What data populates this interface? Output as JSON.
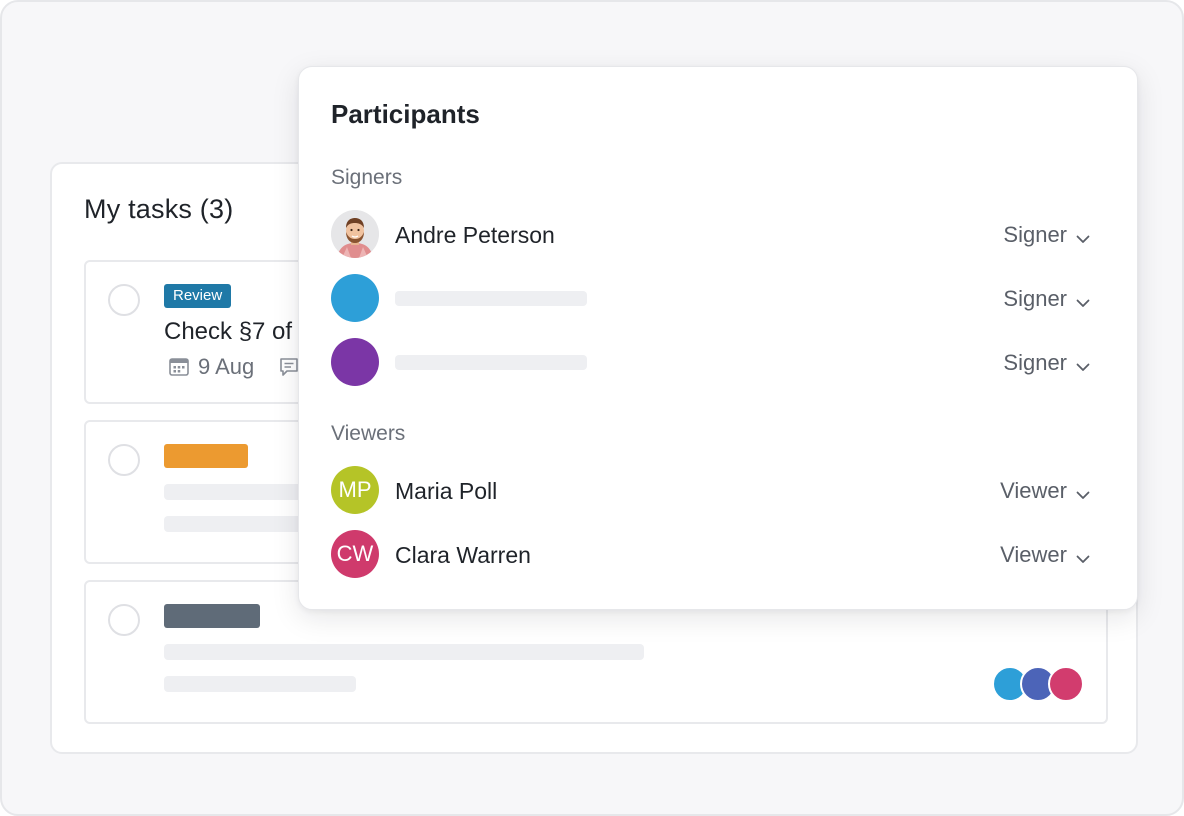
{
  "tasks": {
    "title": "My tasks (3)",
    "cards": [
      {
        "tag": "Review",
        "tag_color": "#1f79a7",
        "title": "Check §7 of",
        "date": "9 Aug"
      },
      {
        "tag_color": "#ec9a30"
      },
      {
        "tag_color": "#5f6b78",
        "avatar_colors": [
          "#2d9fd8",
          "#4c64b8",
          "#d23c6e"
        ]
      }
    ]
  },
  "participants": {
    "title": "Participants",
    "signers_label": "Signers",
    "viewers_label": "Viewers",
    "signers": [
      {
        "name": "Andre Peterson",
        "role": "Signer",
        "avatar": "photo"
      },
      {
        "name": "",
        "role": "Signer",
        "avatar_color": "#2d9fd8"
      },
      {
        "name": "",
        "role": "Signer",
        "avatar_color": "#7b36a6"
      }
    ],
    "viewers": [
      {
        "initials": "MP",
        "name": "Maria Poll",
        "role": "Viewer",
        "avatar_color": "#b5c427"
      },
      {
        "initials": "CW",
        "name": "Clara Warren",
        "role": "Viewer",
        "avatar_color": "#cf3a6c"
      }
    ]
  }
}
